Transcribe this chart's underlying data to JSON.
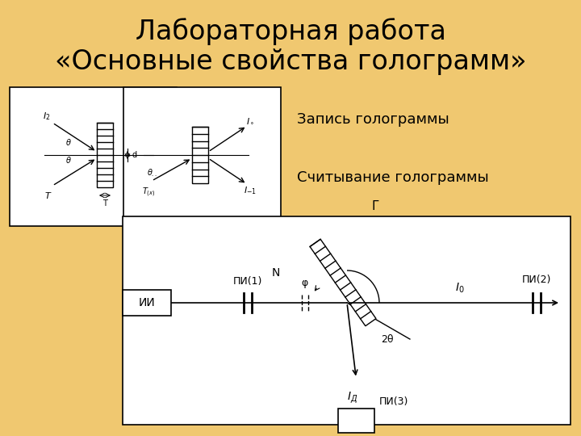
{
  "title_line1": "Лабораторная работа",
  "title_line2": "«Основные свойства голограмм»",
  "label_zapis": "Запись голограммы",
  "label_schit": "Считывание голограммы",
  "bg_color": "#f0c870",
  "title_fontsize": 24,
  "label_fontsize": 13
}
